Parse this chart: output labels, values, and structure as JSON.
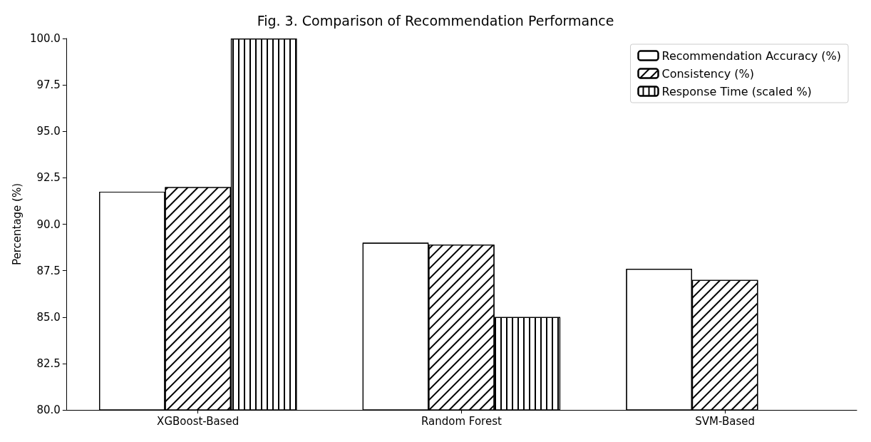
{
  "chart_data": {
    "type": "bar",
    "title": "Fig. 3. Comparison of Recommendation Performance",
    "ylabel": "Percentage (%)",
    "categories": [
      "XGBoost-Based",
      "Random Forest",
      "SVM-Based"
    ],
    "series": [
      {
        "name": "Recommendation Accuracy (%)",
        "color": "#ffffff",
        "values": [
          91.75,
          89.0,
          87.6
        ]
      },
      {
        "name": "Consistency (%)",
        "color": "#ffffff",
        "values": [
          92.0,
          88.9,
          87.0
        ]
      },
      {
        "name": "Response Time (scaled %)",
        "color": "#ffffff",
        "values": [
          100,
          85.0,
          null
        ]
      }
    ],
    "ylim": [
      80,
      100
    ],
    "yticks": [
      {
        "value": 80,
        "label": "80.0"
      },
      {
        "value": 82.5,
        "label": "82.5"
      },
      {
        "value": 85,
        "label": "85.0"
      },
      {
        "value": 87.5,
        "label": "87.5"
      },
      {
        "value": 90,
        "label": "90.0"
      },
      {
        "value": 92.5,
        "label": "92.5"
      },
      {
        "value": 95,
        "label": "95.0"
      },
      {
        "value": 97.5,
        "label": "97.5"
      },
      {
        "value": 100,
        "label": "100.0"
      }
    ],
    "grid": false,
    "legend": "top right"
  }
}
